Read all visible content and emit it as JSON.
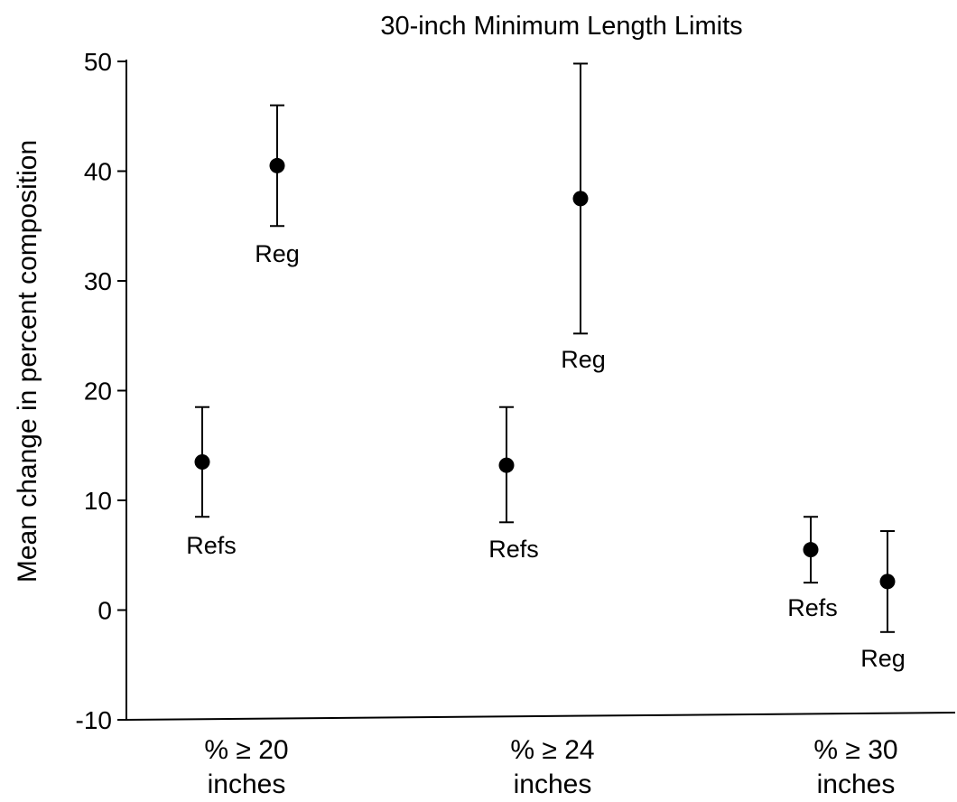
{
  "chart_data": {
    "type": "scatter",
    "title": "30-inch Minimum Length Limits",
    "ylabel": "Mean change in percent composition",
    "xlabel": "",
    "ylim": [
      -10,
      50
    ],
    "yticks": [
      -10,
      0,
      10,
      20,
      30,
      40,
      50
    ],
    "grid": false,
    "error_bars": true,
    "categories": [
      {
        "line1": "% ≥ 20",
        "line2": "inches"
      },
      {
        "line1": "% ≥ 24",
        "line2": "inches"
      },
      {
        "line1": "% ≥ 30",
        "line2": "inches"
      }
    ],
    "points": [
      {
        "category_index": 0,
        "label": "Refs",
        "value": 13.5,
        "lower": 8.5,
        "upper": 18.5
      },
      {
        "category_index": 0,
        "label": "Reg",
        "value": 40.5,
        "lower": 35.0,
        "upper": 46.0
      },
      {
        "category_index": 1,
        "label": "Refs",
        "value": 13.2,
        "lower": 8.0,
        "upper": 18.5
      },
      {
        "category_index": 1,
        "label": "Reg",
        "value": 37.5,
        "lower": 25.2,
        "upper": 49.8
      },
      {
        "category_index": 2,
        "label": "Refs",
        "value": 5.5,
        "lower": 2.5,
        "upper": 8.5
      },
      {
        "category_index": 2,
        "label": "Reg",
        "value": 2.6,
        "lower": -2.0,
        "upper": 7.2
      }
    ],
    "colors": {
      "marker": "#000000",
      "axis": "#000000",
      "text": "#000000"
    }
  }
}
